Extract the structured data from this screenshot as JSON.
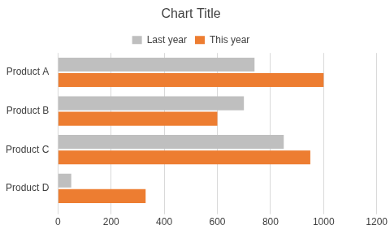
{
  "chart_data": {
    "type": "bar",
    "orientation": "horizontal",
    "title": "Chart Title",
    "categories": [
      "Product A",
      "Product B",
      "Product C",
      "Product D"
    ],
    "series": [
      {
        "name": "Last year",
        "color": "#bfbfbf",
        "values": [
          740,
          700,
          850,
          50
        ]
      },
      {
        "name": "This year",
        "color": "#ED7D31",
        "values": [
          1000,
          600,
          950,
          330
        ]
      }
    ],
    "xlim": [
      0,
      1200
    ],
    "xticks": [
      0,
      200,
      400,
      600,
      800,
      1000,
      1200
    ],
    "grid": true,
    "legend": "top"
  }
}
